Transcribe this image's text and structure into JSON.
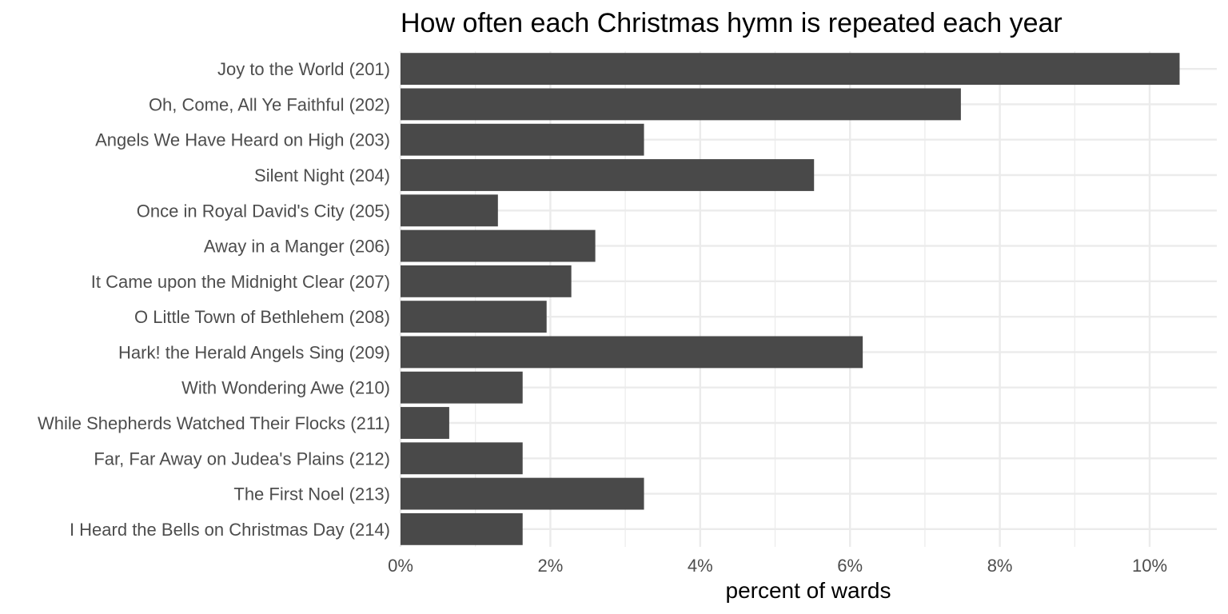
{
  "chart_data": {
    "type": "bar",
    "orientation": "horizontal",
    "title": "How often each Christmas hymn is repeated each year",
    "xlabel": "percent of wards",
    "ylabel": "",
    "categories": [
      "Joy to the World (201)",
      "Oh, Come, All Ye Faithful (202)",
      "Angels We Have Heard on High (203)",
      "Silent Night (204)",
      "Once in Royal David's City (205)",
      "Away in a Manger (206)",
      "It Came upon the Midnight Clear (207)",
      "O Little Town of Bethlehem (208)",
      "Hark! the Herald Angels Sing (209)",
      "With Wondering Awe (210)",
      "While Shepherds Watched Their Flocks (211)",
      "Far, Far Away on Judea's Plains (212)",
      "The First Noel (213)",
      "I Heard the Bells on Christmas Day (214)"
    ],
    "values": [
      10.4,
      7.48,
      3.25,
      5.52,
      1.3,
      2.6,
      2.28,
      1.95,
      6.17,
      1.63,
      0.65,
      1.63,
      3.25,
      1.63
    ],
    "xlim": [
      0,
      10.9
    ],
    "x_ticks": [
      0,
      2,
      4,
      6,
      8,
      10
    ],
    "x_tick_labels": [
      "0%",
      "2%",
      "4%",
      "6%",
      "8%",
      "10%"
    ],
    "grid": true,
    "legend": "none",
    "bar_color": "#494949",
    "grid_color": "#ebebeb"
  }
}
